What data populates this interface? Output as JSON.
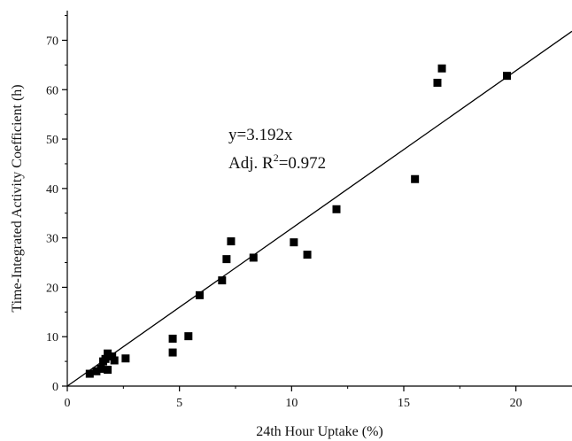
{
  "chart_data": {
    "type": "scatter",
    "title": "",
    "xlabel": "24th Hour Uptake (%)",
    "ylabel": "Time-Integrated Activity Coefficient (h)",
    "xlim": [
      0,
      22.5
    ],
    "ylim": [
      0,
      76
    ],
    "x_ticks": [
      0,
      5,
      10,
      15,
      20
    ],
    "y_ticks": [
      0,
      10,
      20,
      30,
      40,
      50,
      60,
      70
    ],
    "grid": false,
    "legend": "none",
    "marker": "square",
    "marker_color": "#000000",
    "series": [
      {
        "points": [
          [
            1.0,
            2.5
          ],
          [
            1.3,
            3.0
          ],
          [
            1.5,
            3.5
          ],
          [
            1.6,
            5.0
          ],
          [
            1.7,
            5.5
          ],
          [
            1.8,
            3.3
          ],
          [
            1.8,
            6.6
          ],
          [
            2.0,
            6.0
          ],
          [
            2.1,
            5.2
          ],
          [
            2.6,
            5.6
          ],
          [
            4.7,
            6.8
          ],
          [
            4.7,
            9.6
          ],
          [
            5.4,
            10.1
          ],
          [
            5.9,
            18.4
          ],
          [
            6.9,
            21.4
          ],
          [
            7.1,
            25.7
          ],
          [
            7.3,
            29.3
          ],
          [
            8.3,
            26.0
          ],
          [
            10.1,
            29.1
          ],
          [
            10.7,
            26.6
          ],
          [
            12.0,
            35.8
          ],
          [
            15.5,
            41.9
          ],
          [
            16.5,
            61.4
          ],
          [
            16.7,
            64.3
          ],
          [
            19.6,
            62.8
          ]
        ]
      }
    ],
    "fit_line": {
      "slope": 3.192,
      "intercept": 0,
      "color": "#000000"
    },
    "annotation": {
      "equation": "y=3.192x",
      "r2_prefix": "Adj. R",
      "r2_sup": "2",
      "r2_value": "=0.972"
    }
  }
}
